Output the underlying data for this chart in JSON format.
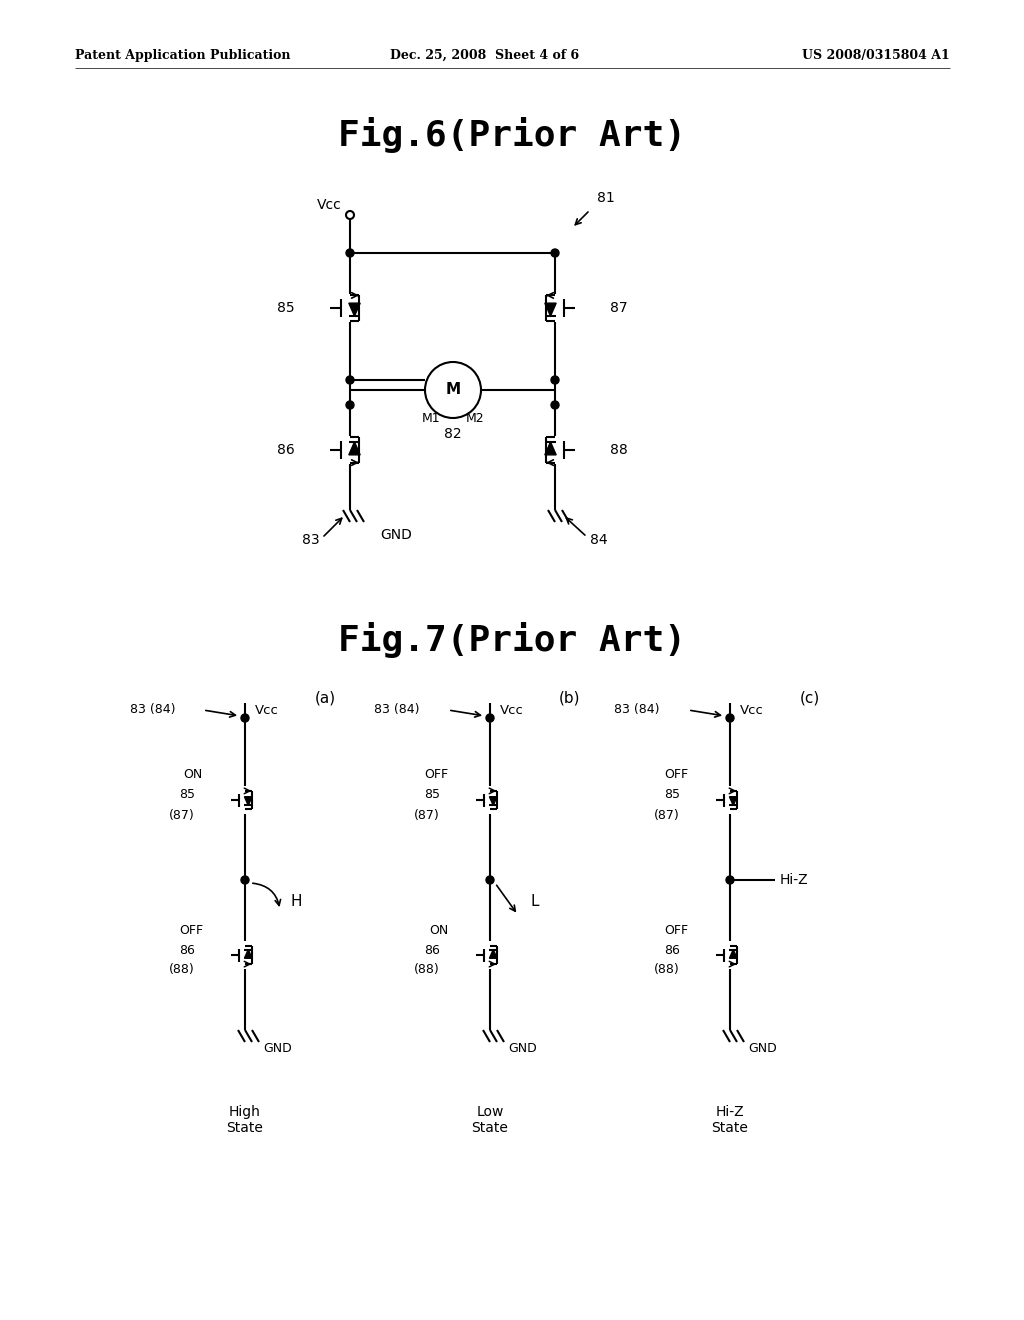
{
  "bg_color": "#ffffff",
  "header_left": "Patent Application Publication",
  "header_mid": "Dec. 25, 2008  Sheet 4 of 6",
  "header_right": "US 2008/0315804 A1",
  "fig6_title": "Fig.6(Prior Art)",
  "fig7_title": "Fig.7(Prior Art)",
  "fig7a_state": "High\nState",
  "fig7b_state": "Low\nState",
  "fig7c_state": "Hi-Z\nState"
}
